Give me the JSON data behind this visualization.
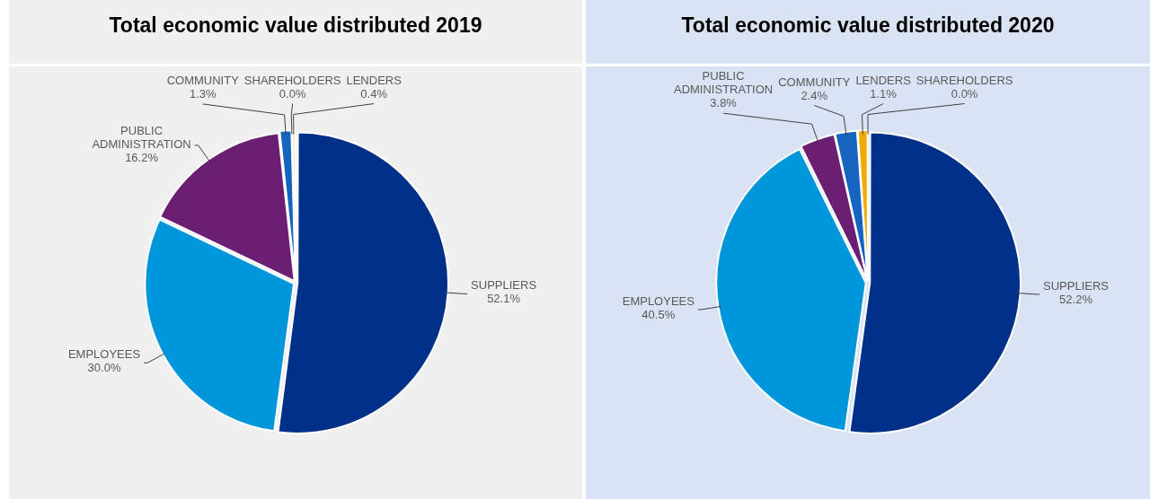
{
  "chart_data": [
    {
      "type": "pie",
      "title": "Total economic value distributed 2019",
      "categories": [
        "SUPPLIERS",
        "EMPLOYEES",
        "PUBLIC ADMINISTRATION",
        "COMMUNITY",
        "SHAREHOLDERS",
        "LENDERS"
      ],
      "values": [
        52.1,
        30.0,
        16.2,
        1.3,
        0.0,
        0.4
      ],
      "colors": [
        "#003087",
        "#0096dc",
        "#6b1f73",
        "#1565c0",
        "#9e9e9e",
        "#f3e2b3"
      ],
      "value_labels": [
        "52.1%",
        "30.0%",
        "16.2%",
        "1.3%",
        "0.0%",
        "0.4%"
      ],
      "legend": false
    },
    {
      "type": "pie",
      "title": "Total economic value distributed 2020",
      "categories": [
        "SUPPLIERS",
        "EMPLOYEES",
        "PUBLIC ADMINISTRATION",
        "COMMUNITY",
        "LENDERS",
        "SHAREHOLDERS"
      ],
      "values": [
        52.2,
        40.5,
        3.8,
        2.4,
        1.1,
        0.0
      ],
      "colors": [
        "#003087",
        "#0096dc",
        "#6b1f73",
        "#1565c0",
        "#f0aa00",
        "#9e9e9e"
      ],
      "value_labels": [
        "52.2%",
        "40.5%",
        "3.8%",
        "2.4%",
        "1.1%",
        "0.0%"
      ],
      "legend": false
    }
  ]
}
